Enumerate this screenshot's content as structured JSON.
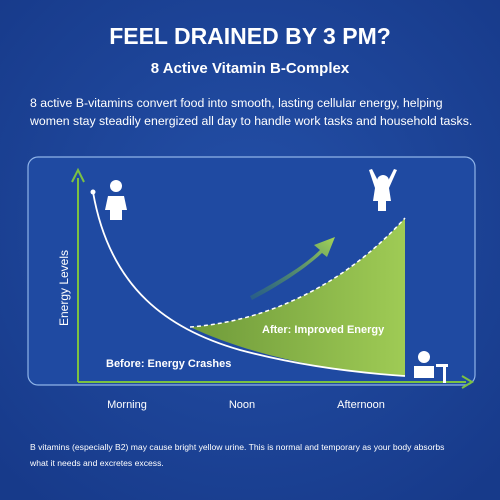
{
  "header": {
    "title": "FEEL DRAINED BY 3 PM?",
    "subtitle": "8 Active Vitamin B-Complex"
  },
  "description": [
    "8 active B-vitamins convert food into smooth, lasting cellular energy, helping",
    "women stay steadily energized all day to handle work tasks and household tasks."
  ],
  "chart": {
    "y_label": "Energy Levels",
    "x_labels": [
      "Morning",
      "Noon",
      "Afternoon"
    ],
    "after_label": "After: Improved Energy",
    "before_label": "Before: Energy Crashes"
  },
  "footnote": [
    "B vitamins (especially B2) may cause bright yellow urine. This is normal and temporary as your body absorbs",
    "what it needs and excretes excess."
  ]
}
